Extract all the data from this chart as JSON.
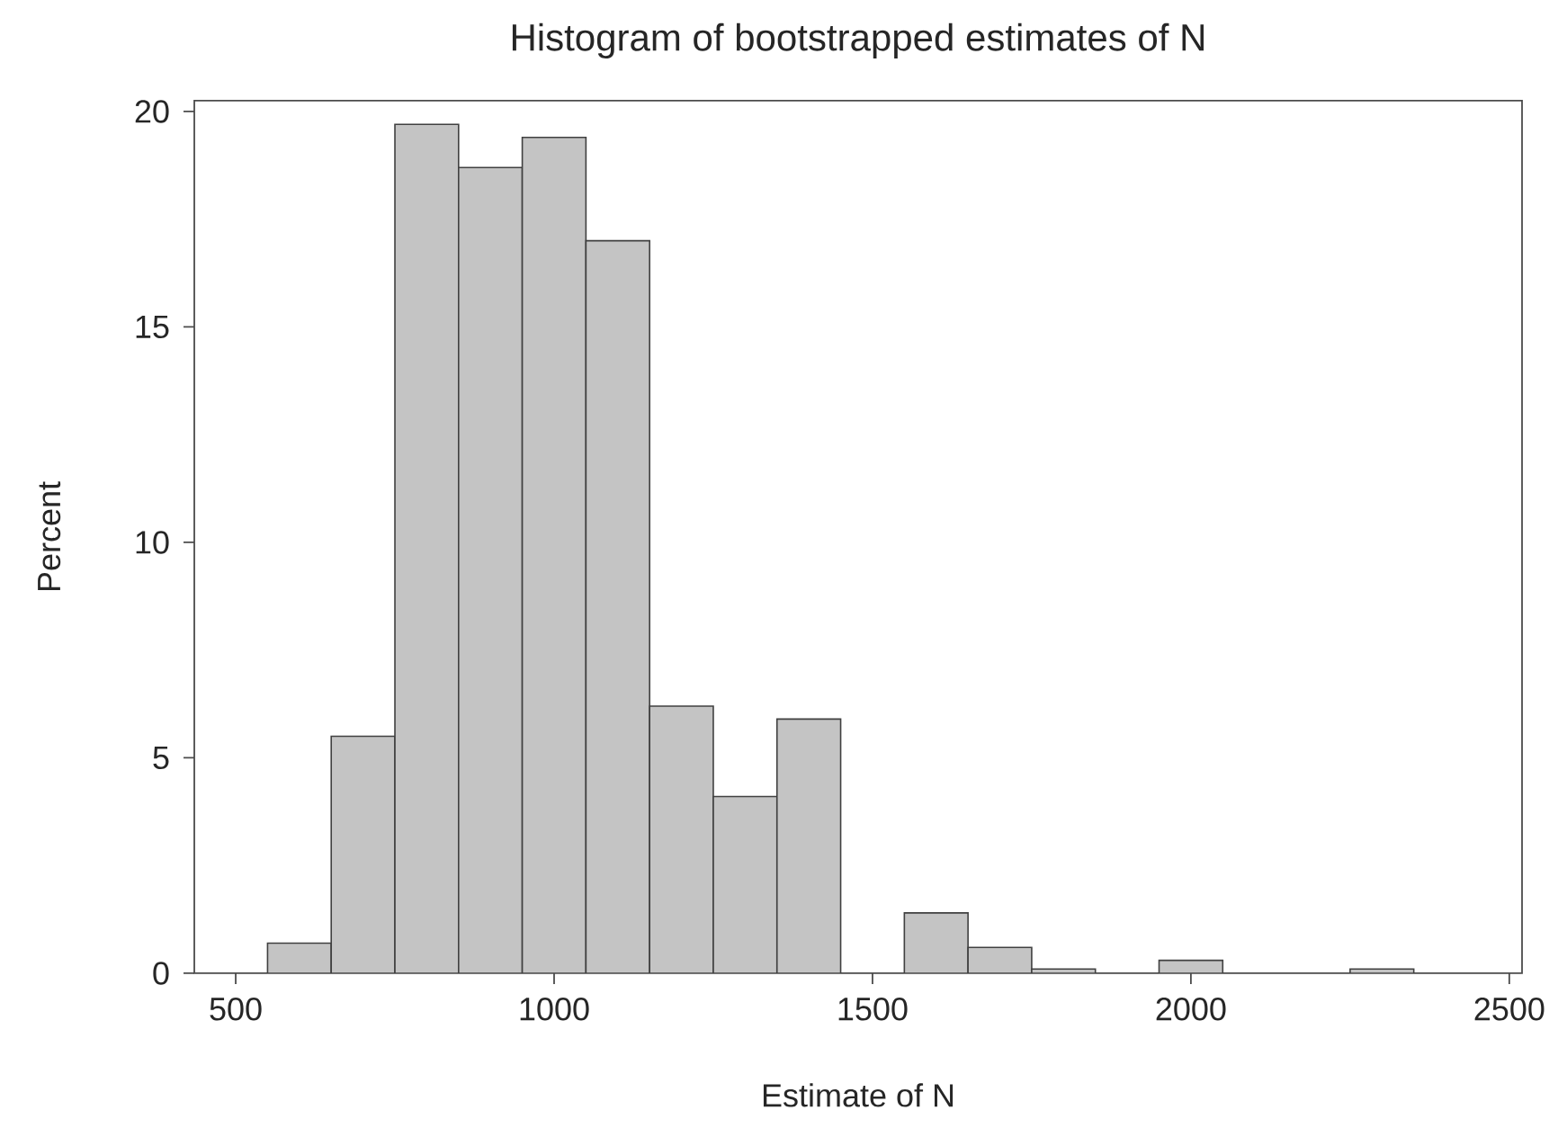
{
  "chart_data": {
    "type": "histogram",
    "title": "Histogram of bootstrapped estimates of N",
    "xlabel": "Estimate of N",
    "ylabel": "Percent",
    "bins": [
      550,
      650,
      750,
      850,
      950,
      1050,
      1150,
      1250,
      1350,
      1450,
      1550,
      1650,
      1750,
      1850,
      1950,
      2050,
      2150,
      2250,
      2350
    ],
    "values": [
      0.7,
      5.5,
      19.7,
      18.7,
      19.4,
      17.0,
      6.2,
      4.1,
      5.9,
      0,
      1.4,
      0.6,
      0.1,
      0,
      0.3,
      0,
      0,
      0.1
    ],
    "color": "#c4c4c4",
    "xlim": [
      435,
      2520
    ],
    "ylim": [
      0,
      20.25
    ],
    "xticks": [
      500,
      1000,
      1500,
      2000,
      2500
    ],
    "yticks": [
      0,
      5,
      10,
      15,
      20
    ],
    "grid": false
  }
}
